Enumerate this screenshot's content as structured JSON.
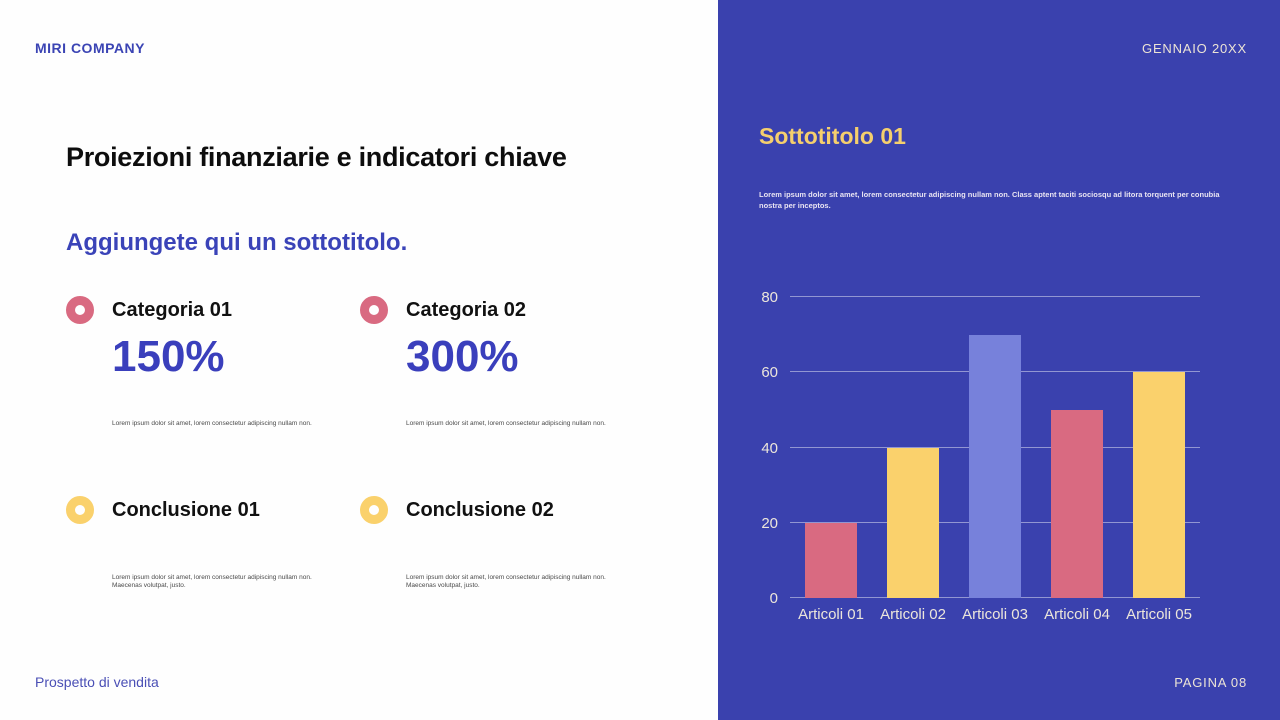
{
  "header": {
    "company": "MIRI COMPANY",
    "date": "GENNAIO 20XX"
  },
  "left": {
    "title": "Proiezioni finanziarie e indicatori chiave",
    "subtitle": "Aggiungete qui un sottotitolo.",
    "stats": [
      {
        "label": "Categoria 01",
        "value": "150%",
        "desc": "Lorem ipsum dolor sit amet, lorem consectetur adipiscing nullam non.",
        "ring_color": "#D96A81"
      },
      {
        "label": "Categoria 02",
        "value": "300%",
        "desc": "Lorem ipsum dolor sit amet, lorem consectetur adipiscing nullam non.",
        "ring_color": "#D96A81"
      },
      {
        "label": "Conclusione 01",
        "value": "",
        "desc": "Lorem ipsum dolor sit amet, lorem consectetur adipiscing nullam non. Maecenas volutpat, justo.",
        "ring_color": "#FAD16C"
      },
      {
        "label": "Conclusione 02",
        "value": "",
        "desc": "Lorem ipsum dolor sit amet, lorem consectetur adipiscing nullam non. Maecenas volutpat, justo.",
        "ring_color": "#FAD16C"
      }
    ],
    "footer": "Prospetto di vendita"
  },
  "right": {
    "section_title": "Sottotitolo 01",
    "paragraph": "Lorem ipsum dolor sit amet, lorem consectetur adipiscing nullam non. Class aptent taciti sociosqu ad litora torquent per conubia nostra per inceptos.",
    "footer": "PAGINA 08"
  },
  "chart_data": {
    "type": "bar",
    "title": "",
    "xlabel": "",
    "ylabel": "",
    "categories": [
      "Articoli 01",
      "Articoli 02",
      "Articoli 03",
      "Articoli 04",
      "Articoli 05"
    ],
    "values": [
      20,
      40,
      70,
      50,
      60
    ],
    "bar_colors": [
      "#D96A81",
      "#FAD16C",
      "#7781DB",
      "#D96A81",
      "#FAD16C"
    ],
    "ylim": [
      0,
      80
    ],
    "yticks": [
      0,
      20,
      40,
      60,
      80
    ],
    "grid": true,
    "legend": false
  },
  "colors": {
    "panel_blue": "#3A41AE",
    "accent_pink": "#D96A81",
    "accent_yellow": "#FAD16C",
    "accent_periwinkle": "#7781DB",
    "text_blue": "#3A3FBC",
    "text_cream": "#ECE4D6",
    "section_title_yellow": "#F5CF6D"
  }
}
